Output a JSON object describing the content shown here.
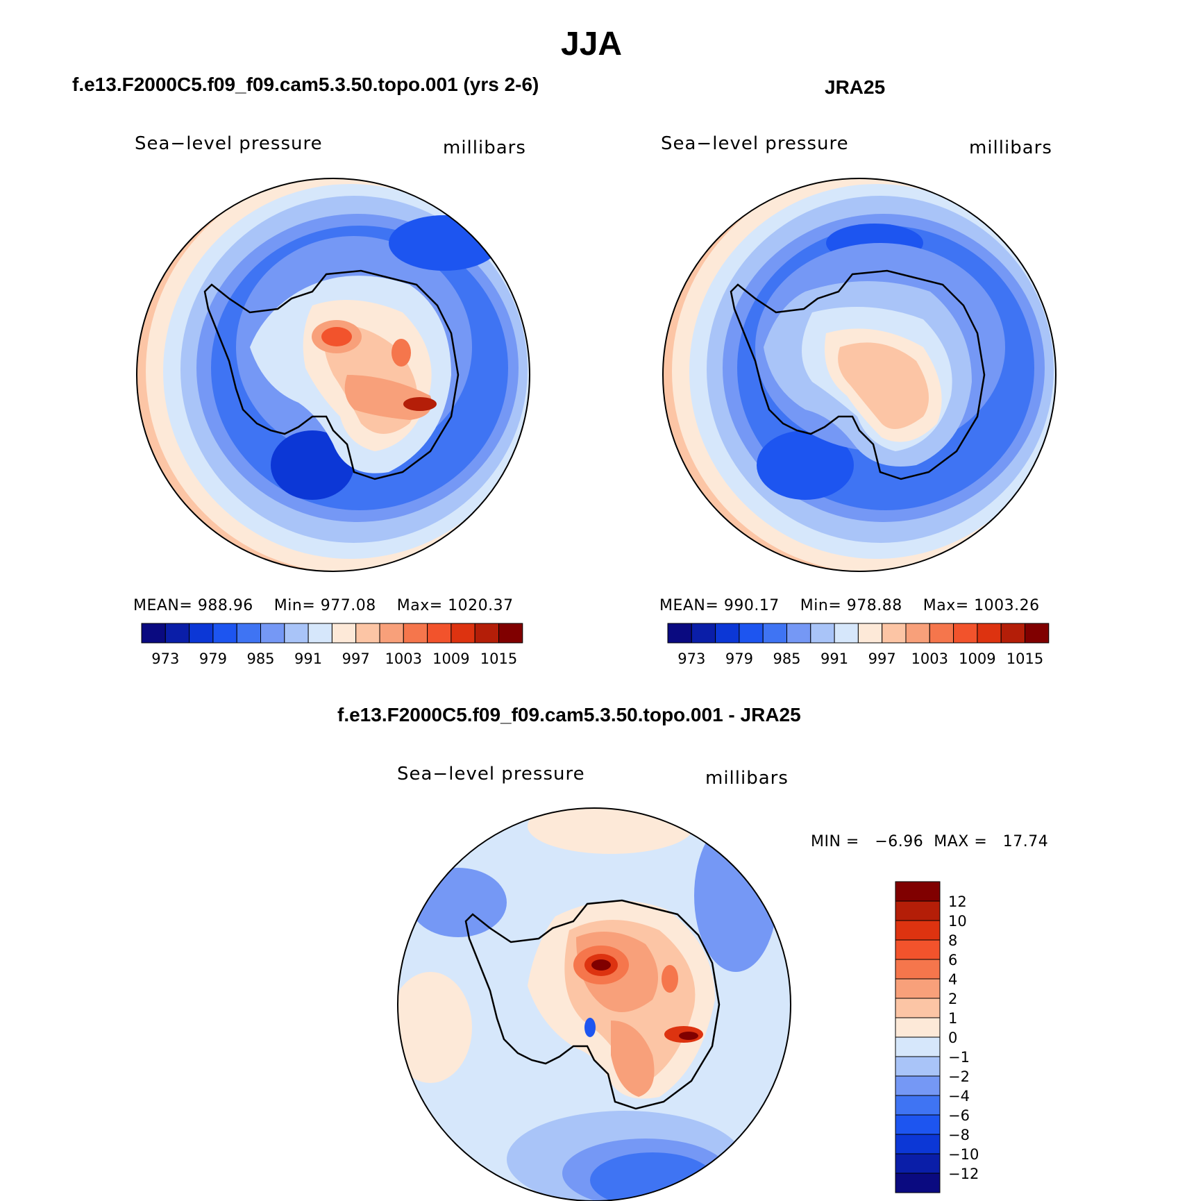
{
  "page": {
    "title": "JJA"
  },
  "chart_data": [
    {
      "type": "heatmap",
      "projection": "south-polar-stereographic",
      "title": "f.e13.F2000C5.f09_f09.cam5.3.50.topo.001 (yrs 2-6)",
      "variable": "Sea−level pressure",
      "units": "millibars",
      "stats": {
        "mean_label": "MEAN=",
        "mean": "988.96",
        "min_label": "Min=",
        "min": "977.08",
        "max_label": "Max=",
        "max": "1020.37"
      },
      "colorbar": {
        "orientation": "horizontal",
        "tick_labels": [
          "973",
          "979",
          "985",
          "991",
          "997",
          "1003",
          "1009",
          "1015"
        ],
        "colors": [
          "#0a0a80",
          "#0a1ea8",
          "#0c37d6",
          "#1d55f0",
          "#3f74f3",
          "#7598f5",
          "#a9c4f8",
          "#d6e7fb",
          "#fde9d8",
          "#fcc5a5",
          "#f8a07a",
          "#f5764c",
          "#f2532c",
          "#dd3310",
          "#b41e08",
          "#800000"
        ]
      },
      "field_summary": {
        "continent_high_centers": 3,
        "ocean_low_belt": "deep blue ring around continent"
      }
    },
    {
      "type": "heatmap",
      "projection": "south-polar-stereographic",
      "title": "JRA25",
      "variable": "Sea−level pressure",
      "units": "millibars",
      "stats": {
        "mean_label": "MEAN=",
        "mean": "990.17",
        "min_label": "Min=",
        "min": "978.88",
        "max_label": "Max=",
        "max": "1003.26"
      },
      "colorbar": {
        "orientation": "horizontal",
        "tick_labels": [
          "973",
          "979",
          "985",
          "991",
          "997",
          "1003",
          "1009",
          "1015"
        ],
        "colors": [
          "#0a0a80",
          "#0a1ea8",
          "#0c37d6",
          "#1d55f0",
          "#3f74f3",
          "#7598f5",
          "#a9c4f8",
          "#d6e7fb",
          "#fde9d8",
          "#fcc5a5",
          "#f8a07a",
          "#f5764c",
          "#f2532c",
          "#dd3310",
          "#b41e08",
          "#800000"
        ]
      }
    },
    {
      "type": "heatmap",
      "projection": "south-polar-stereographic",
      "title": "f.e13.F2000C5.f09_f09.cam5.3.50.topo.001 - JRA25",
      "variable": "Sea−level pressure",
      "units": "millibars",
      "stats": {
        "min_label": "MIN =",
        "min": "−6.96",
        "max_label": "MAX =",
        "max": "17.74"
      },
      "colorbar": {
        "orientation": "vertical",
        "tick_labels": [
          "12",
          "10",
          "8",
          "6",
          "4",
          "2",
          "1",
          "0",
          "−1",
          "−2",
          "−4",
          "−6",
          "−8",
          "−10",
          "−12"
        ],
        "colors": [
          "#800000",
          "#b41e08",
          "#dd3310",
          "#f2532c",
          "#f5764c",
          "#f8a07a",
          "#fcc5a5",
          "#fde9d8",
          "#d6e7fb",
          "#a9c4f8",
          "#7598f5",
          "#3f74f3",
          "#1d55f0",
          "#0c37d6",
          "#0a1ea8",
          "#0a0a80"
        ]
      }
    }
  ]
}
